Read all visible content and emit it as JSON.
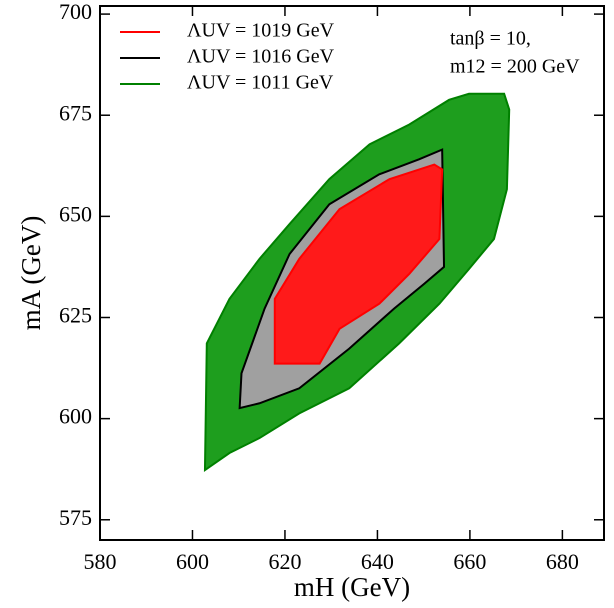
{
  "chart_data": {
    "type": "region",
    "x_label": "mH (GeV)",
    "y_label": "mA (GeV)",
    "annotations": [
      "tanβ = 10,",
      "m12 = 200 GeV"
    ],
    "xlim": [
      580,
      689
    ],
    "ylim": [
      570,
      702
    ],
    "xticks": [
      580,
      600,
      620,
      640,
      660,
      680
    ],
    "yticks": [
      575,
      600,
      625,
      650,
      675,
      700
    ],
    "legend": "upper left",
    "series": [
      {
        "name": "ΛUV = 1019 GeV",
        "color": "#ff0000",
        "fill": "#ff1a1a",
        "x": [
          617.8,
          617.8,
          623.1,
          631.8,
          642.6,
          652.3,
          654.0,
          653.4,
          646.9,
          640.4,
          631.8,
          627.5
        ],
        "y": [
          613.6,
          629.6,
          639.5,
          651.8,
          659.2,
          662.8,
          661.6,
          644.4,
          635.8,
          628.4,
          622.2,
          613.6
        ]
      },
      {
        "name": "ΛUV = 1016 GeV",
        "color": "#000000",
        "fill": "#a0a0a0",
        "x": [
          610.2,
          610.6,
          615.6,
          621.0,
          629.6,
          640.4,
          649.0,
          654.0,
          654.4,
          650.1,
          643.6,
          633.9,
          623.1,
          614.5
        ],
        "y": [
          602.6,
          611.2,
          627.2,
          640.7,
          653.0,
          660.4,
          664.1,
          666.5,
          637.5,
          633.3,
          627.2,
          617.3,
          607.5,
          603.8
        ]
      },
      {
        "name": "ΛUV = 1011 GeV",
        "color": "#008000",
        "fill": "#1e9e1e",
        "x": [
          602.7,
          603.1,
          608.0,
          614.5,
          621.0,
          629.6,
          638.3,
          646.9,
          655.5,
          659.8,
          667.4,
          668.5,
          668.0,
          665.2,
          659.8,
          653.4,
          644.7,
          633.9,
          623.1,
          614.5,
          608.0
        ],
        "y": [
          587.3,
          618.6,
          629.6,
          639.5,
          648.1,
          659.2,
          667.8,
          672.7,
          678.8,
          680.3,
          680.3,
          676.4,
          656.7,
          644.4,
          637.0,
          628.4,
          618.6,
          607.5,
          601.3,
          595.2,
          591.5
        ]
      }
    ]
  }
}
